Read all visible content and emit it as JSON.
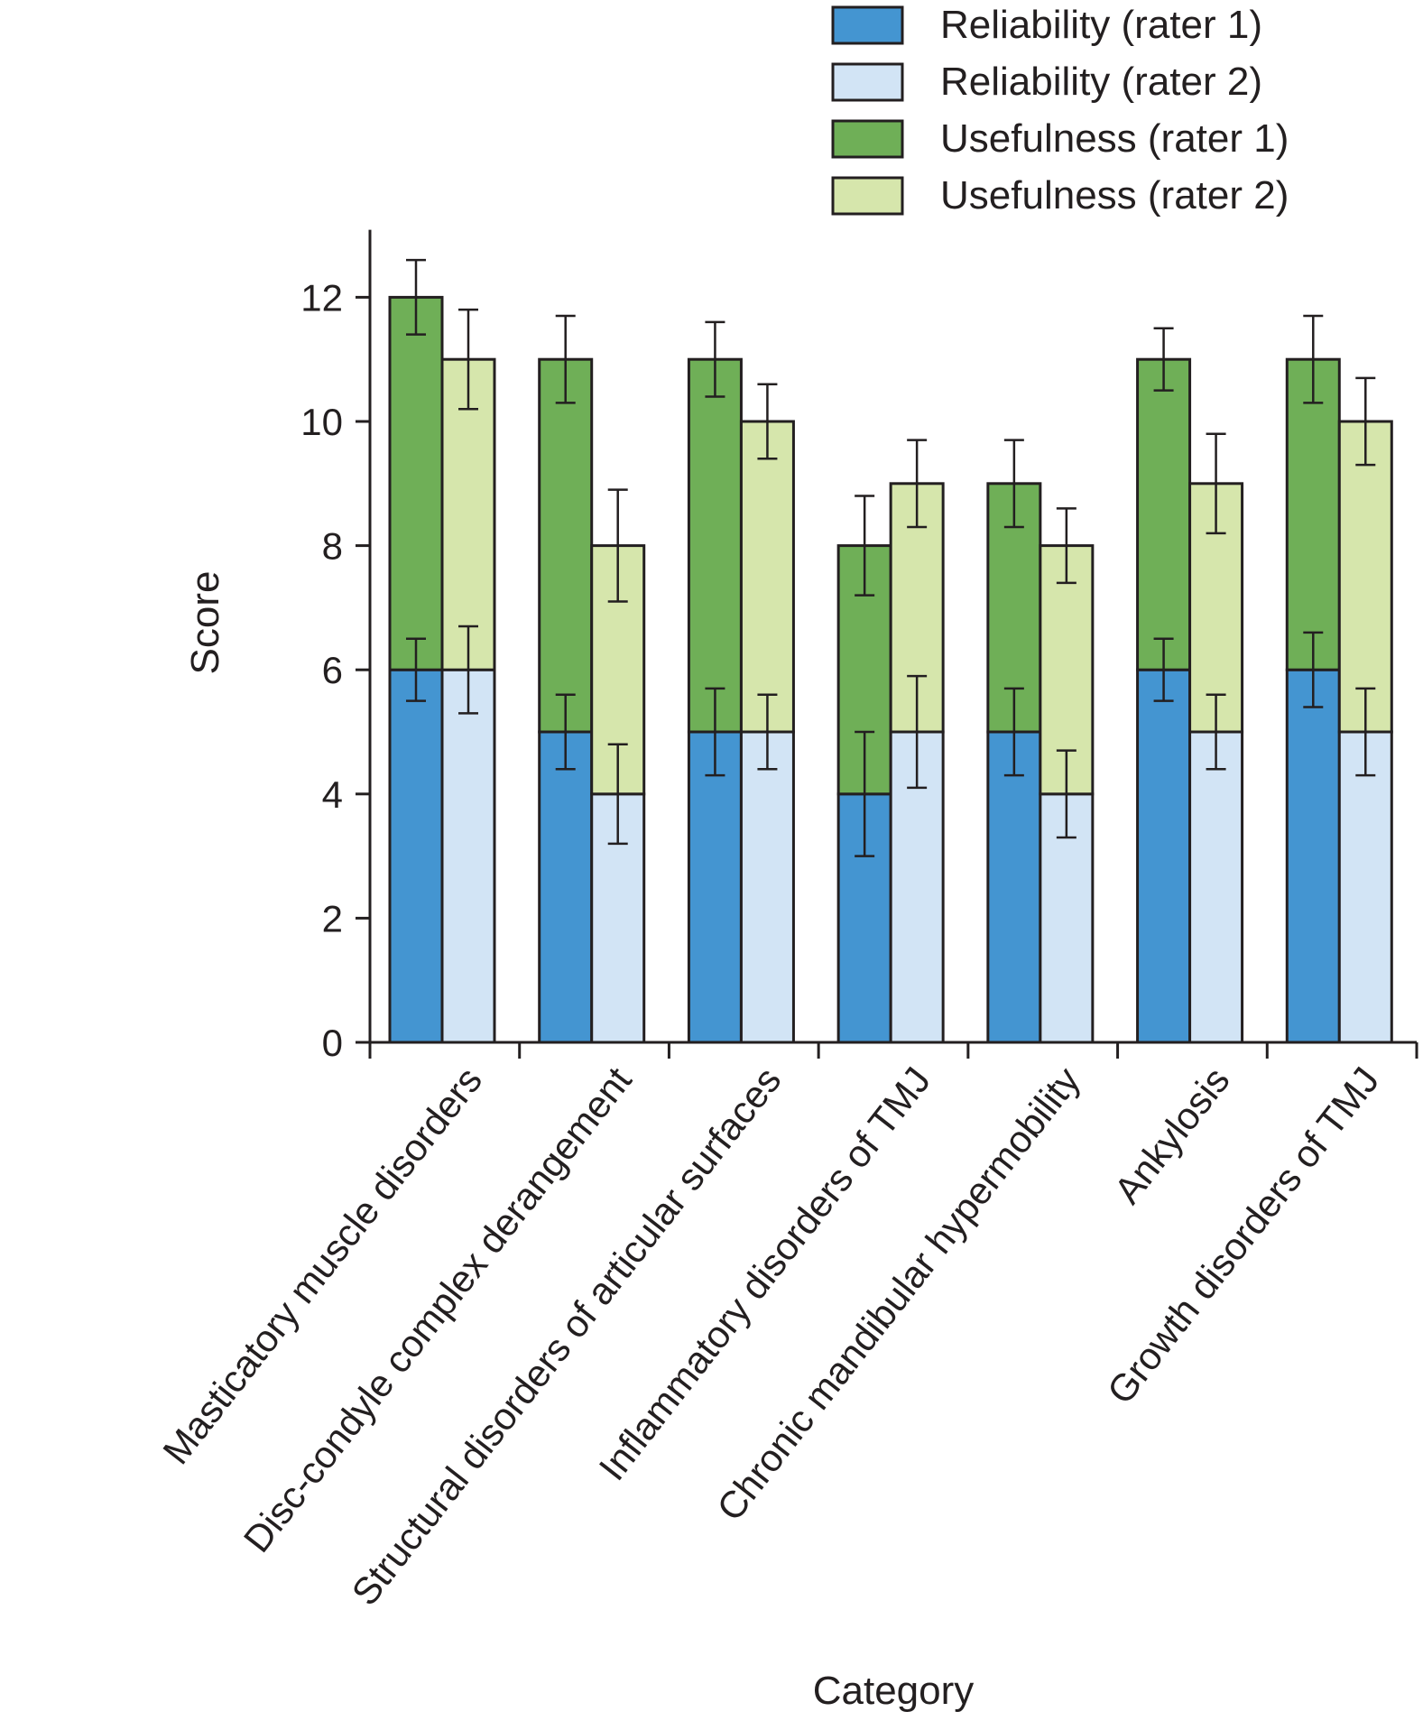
{
  "chart_data": {
    "type": "bar",
    "stacked": true,
    "title": "",
    "xlabel": "Category",
    "ylabel": "Score",
    "ylim": [
      0,
      13
    ],
    "yticks": [
      0,
      2,
      4,
      6,
      8,
      10,
      12
    ],
    "categories": [
      "Masticatory muscle disorders",
      "Disc-condyle complex derangement",
      "Structural disorders of articular surfaces",
      "Inflammatory disorders of TMJ",
      "Chronic mandibular hypermobility",
      "Ankylosis",
      "Growth disorders of TMJ"
    ],
    "series": [
      {
        "name": "Reliability (rater 1)",
        "color": "#4495d1",
        "stack": "rater1",
        "values": [
          6,
          5,
          5,
          4,
          5,
          6,
          6
        ],
        "errors": [
          0.5,
          0.6,
          0.7,
          1.0,
          0.7,
          0.5,
          0.6
        ]
      },
      {
        "name": "Reliability (rater 2)",
        "color": "#d2e4f5",
        "stack": "rater2",
        "values": [
          6,
          4,
          5,
          5,
          4,
          5,
          5
        ],
        "errors": [
          0.7,
          0.8,
          0.6,
          0.9,
          0.7,
          0.6,
          0.7
        ]
      },
      {
        "name": "Usefulness (rater 1)",
        "color": "#6faf57",
        "stack": "rater1",
        "values": [
          6,
          6,
          6,
          4,
          4,
          5,
          5
        ],
        "errors": [
          0.6,
          0.7,
          0.6,
          0.8,
          0.7,
          0.5,
          0.7
        ]
      },
      {
        "name": "Usefulness (rater 2)",
        "color": "#d6e6ac",
        "stack": "rater2",
        "values": [
          5,
          4,
          5,
          4,
          4,
          4,
          5
        ],
        "errors": [
          0.8,
          0.9,
          0.6,
          0.7,
          0.6,
          0.8,
          0.7
        ]
      }
    ],
    "legend": "top-right"
  }
}
